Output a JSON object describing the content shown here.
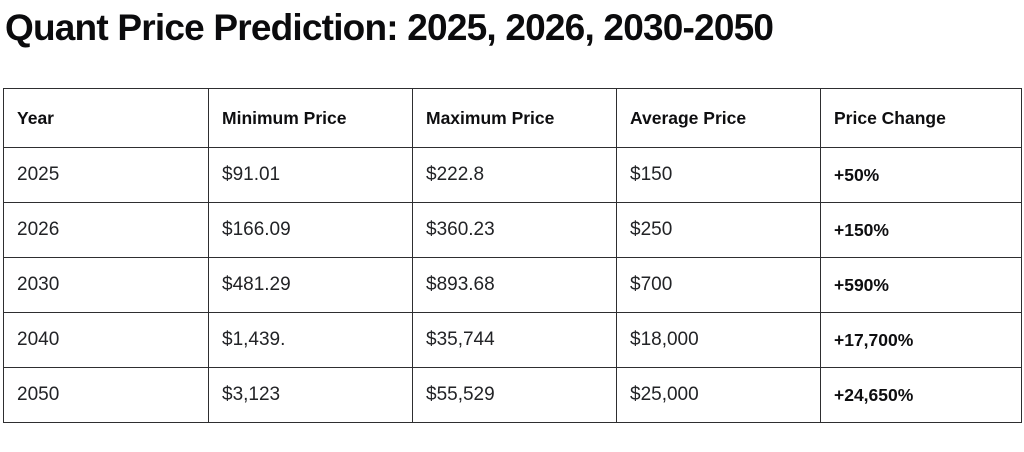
{
  "page": {
    "title": "Quant Price Prediction: 2025, 2026, 2030-2050"
  },
  "colors": {
    "background": "#ffffff",
    "text": "#111111",
    "table_border": "#2e2e30"
  },
  "table": {
    "columns": [
      "Year",
      "Minimum Price",
      "Maximum Price",
      "Average Price",
      "Price Change"
    ],
    "rows": [
      {
        "year": "2025",
        "min": "$91.01",
        "max": "$222.8",
        "avg": "$150",
        "change": "+50%"
      },
      {
        "year": "2026",
        "min": "$166.09",
        "max": "$360.23",
        "avg": "$250",
        "change": "+150%"
      },
      {
        "year": "2030",
        "min": "$481.29",
        "max": "$893.68",
        "avg": "$700",
        "change": "+590%"
      },
      {
        "year": "2040",
        "min": "$1,439.",
        "max": "$35,744",
        "avg": "$18,000",
        "change": "+17,700%"
      },
      {
        "year": "2050",
        "min": "$3,123",
        "max": "$55,529",
        "avg": "$25,000",
        "change": "+24,650%"
      }
    ]
  },
  "chart_data": {
    "type": "table",
    "title": "Quant Price Prediction: 2025, 2026, 2030-2050",
    "categories": [
      "2025",
      "2026",
      "2030",
      "2040",
      "2050"
    ],
    "series": [
      {
        "name": "Minimum Price",
        "values": [
          91.01,
          166.09,
          481.29,
          1439,
          3123
        ]
      },
      {
        "name": "Maximum Price",
        "values": [
          222.8,
          360.23,
          893.68,
          35744,
          55529
        ]
      },
      {
        "name": "Average Price",
        "values": [
          150,
          250,
          700,
          18000,
          25000
        ]
      },
      {
        "name": "Price Change %",
        "values": [
          50,
          150,
          590,
          17700,
          24650
        ]
      }
    ]
  }
}
